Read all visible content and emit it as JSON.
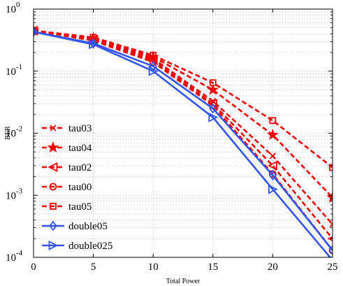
{
  "chart_data": {
    "type": "line",
    "xlabel": "Total Power",
    "ylabel": "BER",
    "xlim": [
      0,
      25
    ],
    "ylim": [
      0.0001,
      1
    ],
    "yscale": "log",
    "grid": true,
    "legend_position": "bottom-left",
    "x_ticks": [
      "0",
      "5",
      "10",
      "15",
      "20",
      "25"
    ],
    "y_ticks": [
      {
        "base": "10",
        "exp": "0"
      },
      {
        "base": "10",
        "exp": "-1"
      },
      {
        "base": "10",
        "exp": "-2"
      },
      {
        "base": "10",
        "exp": "-3"
      },
      {
        "base": "10",
        "exp": "-4"
      }
    ],
    "x": [
      0,
      5,
      10,
      15,
      20,
      25
    ],
    "series": [
      {
        "name": "tau03",
        "color": "#ee0000",
        "dash": true,
        "marker": "x",
        "values": [
          0.45,
          0.33,
          0.16,
          0.033,
          0.0043,
          0.00034
        ]
      },
      {
        "name": "tau04",
        "color": "#ee0000",
        "dash": true,
        "marker": "star",
        "values": [
          0.45,
          0.34,
          0.17,
          0.05,
          0.0094,
          0.00092
        ]
      },
      {
        "name": "tau02",
        "color": "#ee0000",
        "dash": true,
        "marker": "triangle-left",
        "values": [
          0.45,
          0.32,
          0.15,
          0.03,
          0.003,
          0.0002
        ]
      },
      {
        "name": "tau00",
        "color": "#ee0000",
        "dash": true,
        "marker": "circle",
        "values": [
          0.45,
          0.31,
          0.14,
          0.028,
          0.0022,
          0.00013
        ]
      },
      {
        "name": "tau05",
        "color": "#ee0000",
        "dash": true,
        "marker": "square",
        "values": [
          0.45,
          0.35,
          0.18,
          0.065,
          0.016,
          0.0028
        ]
      },
      {
        "name": "double05",
        "color": "#3355ee",
        "dash": false,
        "marker": "diamond",
        "values": [
          0.43,
          0.28,
          0.12,
          0.025,
          0.0021,
          0.00013
        ]
      },
      {
        "name": "double025",
        "color": "#3355ee",
        "dash": false,
        "marker": "triangle-right",
        "values": [
          0.43,
          0.27,
          0.1,
          0.018,
          0.00125,
          9e-05
        ]
      }
    ]
  }
}
